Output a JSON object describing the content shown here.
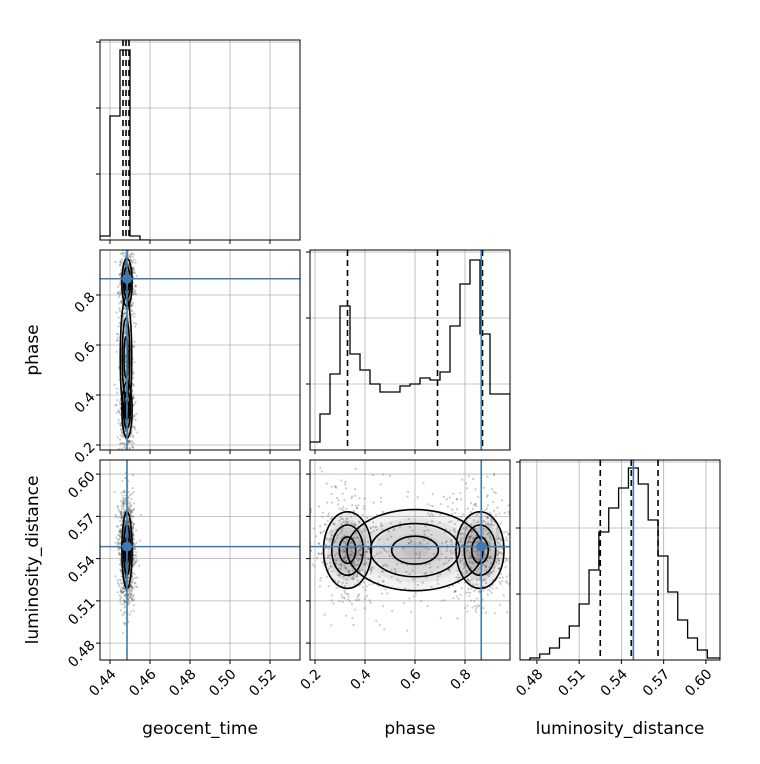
{
  "chart_data": {
    "type": "corner",
    "parameters": [
      "geocent_time",
      "phase",
      "luminosity_distance"
    ],
    "axis_labels": {
      "geocent_time": "geocent_time",
      "phase": "phase",
      "luminosity_distance": "luminosity_distance"
    },
    "ranges": {
      "geocent_time": [
        0.435,
        0.535
      ],
      "phase": [
        0.18,
        0.98
      ],
      "luminosity_distance": [
        0.468,
        0.61
      ]
    },
    "ticks": {
      "geocent_time": [
        "0.44",
        "0.46",
        "0.48",
        "0.50",
        "0.52"
      ],
      "phase": [
        "0.2",
        "0.4",
        "0.6",
        "0.8"
      ],
      "luminosity_distance": [
        "0.48",
        "0.51",
        "0.54",
        "0.57",
        "0.60"
      ]
    },
    "truths": {
      "geocent_time": 0.4485,
      "phase": 0.865,
      "luminosity_distance": 0.5485
    },
    "quantiles": {
      "geocent_time": [
        0.4465,
        0.448,
        0.4495
      ],
      "phase": [
        0.33,
        0.69,
        0.87
      ],
      "luminosity_distance": [
        0.525,
        0.547,
        0.566
      ]
    },
    "histograms": {
      "geocent_time": {
        "edges": [
          0.435,
          0.44,
          0.445,
          0.45,
          0.455,
          0.46
        ],
        "counts": [
          0.02,
          0.62,
          0.95,
          0.02,
          0.0
        ]
      },
      "phase": {
        "edges": [
          0.18,
          0.22,
          0.26,
          0.3,
          0.34,
          0.38,
          0.42,
          0.46,
          0.5,
          0.54,
          0.58,
          0.62,
          0.66,
          0.7,
          0.74,
          0.78,
          0.82,
          0.86,
          0.9,
          0.94,
          0.98
        ],
        "counts": [
          0.04,
          0.18,
          0.38,
          0.72,
          0.48,
          0.4,
          0.33,
          0.29,
          0.29,
          0.32,
          0.33,
          0.36,
          0.35,
          0.39,
          0.62,
          0.83,
          0.95,
          0.58,
          0.28,
          0.28
        ]
      },
      "luminosity_distance": {
        "edges": [
          0.468,
          0.475,
          0.482,
          0.489,
          0.496,
          0.503,
          0.51,
          0.517,
          0.524,
          0.531,
          0.538,
          0.545,
          0.552,
          0.559,
          0.566,
          0.573,
          0.58,
          0.587,
          0.594,
          0.601,
          0.61
        ],
        "counts": [
          0.0,
          0.01,
          0.03,
          0.06,
          0.11,
          0.17,
          0.28,
          0.45,
          0.64,
          0.76,
          0.86,
          0.96,
          0.88,
          0.7,
          0.52,
          0.34,
          0.2,
          0.11,
          0.05,
          0.01
        ]
      }
    },
    "grid": true,
    "truth_color": "#3d7ab5"
  }
}
